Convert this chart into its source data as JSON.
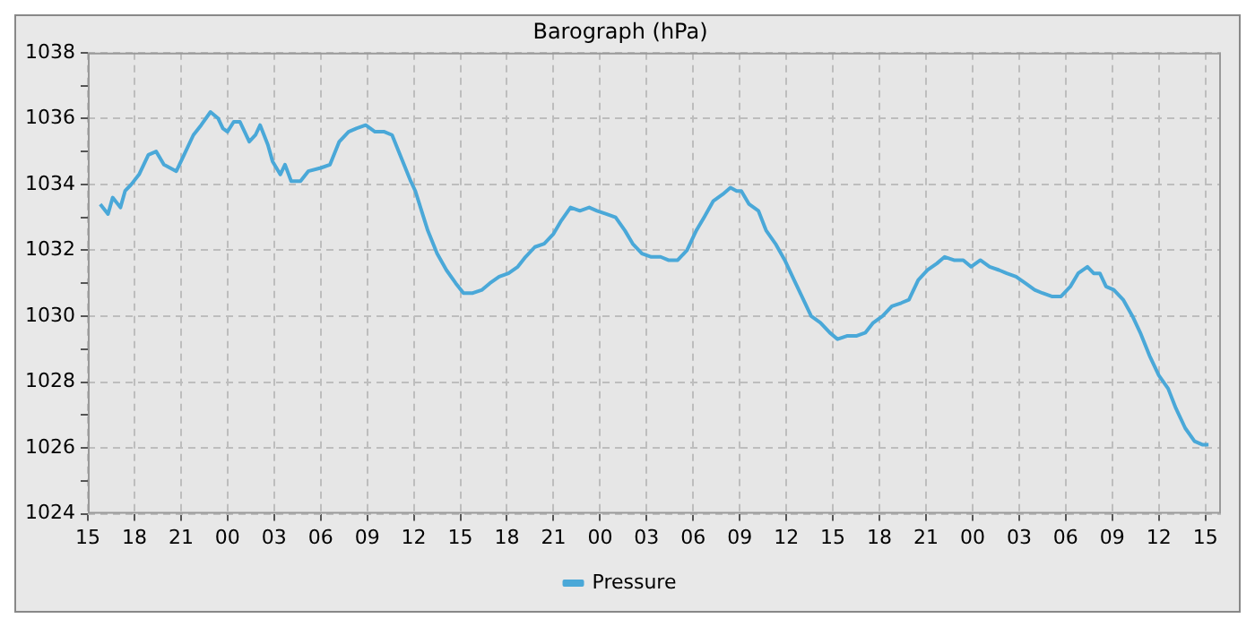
{
  "chart_data": {
    "type": "line",
    "title": "Barograph (hPa)",
    "legend": "bottom",
    "grid": true,
    "marker": "none",
    "line_style": "solid",
    "xlim": [
      15,
      88
    ],
    "xticks": [
      15,
      18,
      21,
      {
        "value": 24,
        "label": "00"
      },
      {
        "value": 27,
        "label": "03"
      },
      {
        "value": 30,
        "label": "06"
      },
      {
        "value": 33,
        "label": "09"
      },
      {
        "value": 36,
        "label": "12"
      },
      {
        "value": 39,
        "label": "15"
      },
      {
        "value": 42,
        "label": "18"
      },
      {
        "value": 45,
        "label": "21"
      },
      {
        "value": 48,
        "label": "00"
      },
      {
        "value": 51,
        "label": "03"
      },
      {
        "value": 54,
        "label": "06"
      },
      {
        "value": 57,
        "label": "09"
      },
      {
        "value": 60,
        "label": "12"
      },
      {
        "value": 63,
        "label": "15"
      },
      {
        "value": 66,
        "label": "18"
      },
      {
        "value": 69,
        "label": "21"
      },
      {
        "value": 72,
        "label": "00"
      },
      {
        "value": 75,
        "label": "03"
      },
      {
        "value": 78,
        "label": "06"
      },
      {
        "value": 81,
        "label": "09"
      },
      {
        "value": 84,
        "label": "12"
      },
      {
        "value": 87,
        "label": "15"
      }
    ],
    "ylim": [
      1024,
      1038
    ],
    "yticks": [
      1024,
      {
        "value": 1025,
        "label": null
      },
      1026,
      {
        "value": 1027,
        "label": null
      },
      1028,
      {
        "value": 1029,
        "label": null
      },
      1030,
      {
        "value": 1031,
        "label": null
      },
      1032,
      {
        "value": 1033,
        "label": null
      },
      1034,
      {
        "value": 1035,
        "label": null
      },
      1036,
      {
        "value": 1037,
        "label": null
      },
      1038
    ],
    "series": [
      {
        "name": "Pressure",
        "color": "#4aa8d8",
        "x": [
          15.8,
          16.3,
          16.6,
          17.1,
          17.4,
          17.8,
          18.3,
          18.9,
          19.4,
          19.9,
          20.7,
          21.2,
          21.8,
          22.3,
          22.9,
          23.4,
          23.7,
          24.0,
          24.4,
          24.8,
          25.0,
          25.4,
          25.8,
          26.1,
          26.6,
          26.9,
          27.4,
          27.7,
          28.1,
          28.7,
          29.2,
          30.0,
          30.6,
          31.2,
          31.8,
          32.3,
          32.9,
          33.5,
          34.1,
          34.6,
          35.2,
          35.8,
          36.1,
          36.5,
          36.9,
          37.5,
          38.1,
          38.7,
          39.2,
          39.8,
          40.4,
          40.9,
          41.5,
          42.1,
          42.7,
          43.2,
          43.8,
          44.4,
          45.0,
          45.5,
          46.1,
          46.7,
          47.3,
          47.8,
          48.4,
          49.0,
          49.6,
          50.1,
          50.7,
          51.3,
          51.9,
          52.4,
          53.0,
          53.6,
          54.2,
          54.7,
          55.3,
          55.9,
          56.4,
          56.8,
          57.1,
          57.6,
          58.2,
          58.7,
          59.3,
          59.9,
          60.5,
          61.0,
          61.6,
          62.2,
          62.8,
          63.3,
          63.9,
          64.5,
          65.1,
          65.6,
          66.2,
          66.8,
          67.4,
          67.9,
          68.5,
          69.1,
          69.7,
          70.2,
          70.8,
          71.4,
          71.9,
          72.5,
          73.1,
          73.7,
          74.2,
          74.8,
          75.4,
          76.0,
          76.5,
          77.1,
          77.7,
          78.3,
          78.8,
          79.4,
          79.8,
          80.2,
          80.6,
          81.1,
          81.7,
          82.3,
          82.8,
          83.4,
          84.0,
          84.6,
          85.1,
          85.7,
          86.3,
          86.8,
          87.2
        ],
        "values": [
          1033.4,
          1033.1,
          1033.6,
          1033.3,
          1033.8,
          1034.0,
          1034.3,
          1034.9,
          1035.0,
          1034.6,
          1034.4,
          1034.9,
          1035.5,
          1035.8,
          1036.2,
          1036.0,
          1035.7,
          1035.6,
          1035.9,
          1035.9,
          1035.7,
          1035.3,
          1035.5,
          1035.8,
          1035.2,
          1034.7,
          1034.3,
          1034.6,
          1034.1,
          1034.1,
          1034.4,
          1034.5,
          1034.6,
          1035.3,
          1035.6,
          1035.7,
          1035.8,
          1035.6,
          1035.6,
          1035.5,
          1034.8,
          1034.1,
          1033.8,
          1033.2,
          1032.6,
          1031.9,
          1031.4,
          1031.0,
          1030.7,
          1030.7,
          1030.8,
          1031.0,
          1031.2,
          1031.3,
          1031.5,
          1031.8,
          1032.1,
          1032.2,
          1032.5,
          1032.9,
          1033.3,
          1033.2,
          1033.3,
          1033.2,
          1033.1,
          1033.0,
          1032.6,
          1032.2,
          1031.9,
          1031.8,
          1031.8,
          1031.7,
          1031.7,
          1032.0,
          1032.6,
          1033.0,
          1033.5,
          1033.7,
          1033.9,
          1033.8,
          1033.8,
          1033.4,
          1033.2,
          1032.6,
          1032.2,
          1031.7,
          1031.1,
          1030.6,
          1030.0,
          1029.8,
          1029.5,
          1029.3,
          1029.4,
          1029.4,
          1029.5,
          1029.8,
          1030.0,
          1030.3,
          1030.4,
          1030.5,
          1031.1,
          1031.4,
          1031.6,
          1031.8,
          1031.7,
          1031.7,
          1031.5,
          1031.7,
          1031.5,
          1031.4,
          1031.3,
          1031.2,
          1031.0,
          1030.8,
          1030.7,
          1030.6,
          1030.6,
          1030.9,
          1031.3,
          1031.5,
          1031.3,
          1031.3,
          1030.9,
          1030.8,
          1030.5,
          1030.0,
          1029.5,
          1028.8,
          1028.2,
          1027.8,
          1027.2,
          1026.6,
          1026.2,
          1026.1,
          1026.1
        ]
      }
    ]
  }
}
